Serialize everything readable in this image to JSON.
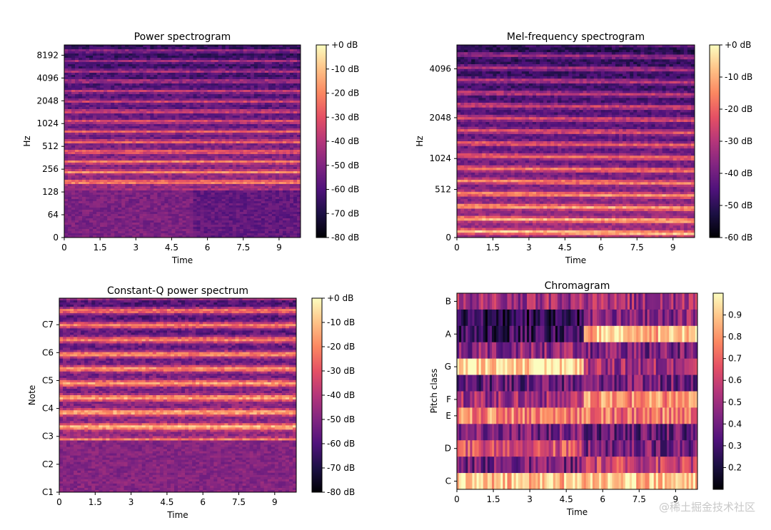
{
  "colors": {
    "magma_stops": [
      "#000004",
      "#1c1044",
      "#4f127b",
      "#812581",
      "#b5367a",
      "#e55064",
      "#fb8761",
      "#fec287",
      "#fcfdbf"
    ]
  },
  "watermark": "@稀土掘金技术社区",
  "chart_data": [
    {
      "id": "power",
      "type": "heatmap",
      "title": "Power spectrogram",
      "xlabel": "Time",
      "ylabel": "Hz",
      "xlim": [
        0,
        9.9
      ],
      "xticks": [
        0,
        1.5,
        3,
        4.5,
        6,
        7.5,
        9
      ],
      "xtick_labels": [
        "0",
        "1.5",
        "3",
        "4.5",
        "6",
        "7.5",
        "9"
      ],
      "yscale": "log",
      "yticks": [
        0,
        64,
        128,
        256,
        512,
        1024,
        2048,
        4096,
        8192
      ],
      "ytick_labels": [
        "0",
        "64",
        "128",
        "256",
        "512",
        "1024",
        "2048",
        "4096",
        "8192"
      ],
      "colorbar": {
        "range": [
          -80,
          0
        ],
        "ticks": [
          0,
          -10,
          -20,
          -30,
          -40,
          -50,
          -60,
          -70,
          -80
        ],
        "labels": [
          "+0 dB",
          "-10 dB",
          "-20 dB",
          "-30 dB",
          "-40 dB",
          "-50 dB",
          "-60 dB",
          "-70 dB",
          "-80 dB"
        ]
      }
    },
    {
      "id": "mel",
      "type": "heatmap",
      "title": "Mel-frequency spectrogram",
      "xlabel": "Time",
      "ylabel": "Hz",
      "xlim": [
        0,
        9.9
      ],
      "xticks": [
        0,
        1.5,
        3,
        4.5,
        6,
        7.5,
        9
      ],
      "xtick_labels": [
        "0",
        "1.5",
        "3",
        "4.5",
        "6",
        "7.5",
        "9"
      ],
      "yscale": "mel",
      "yticks": [
        0,
        512,
        1024,
        2048,
        4096
      ],
      "ytick_labels": [
        "0",
        "512",
        "1024",
        "2048",
        "4096"
      ],
      "colorbar": {
        "range": [
          -60,
          0
        ],
        "ticks": [
          0,
          -10,
          -20,
          -30,
          -40,
          -50,
          -60
        ],
        "labels": [
          "+0 dB",
          "-10 dB",
          "-20 dB",
          "-30 dB",
          "-40 dB",
          "-50 dB",
          "-60 dB"
        ]
      }
    },
    {
      "id": "cqt",
      "type": "heatmap",
      "title": "Constant-Q power spectrum",
      "xlabel": "Time",
      "ylabel": "Note",
      "xlim": [
        0,
        9.9
      ],
      "xticks": [
        0,
        1.5,
        3,
        4.5,
        6,
        7.5,
        9
      ],
      "xtick_labels": [
        "0",
        "1.5",
        "3",
        "4.5",
        "6",
        "7.5",
        "9"
      ],
      "yscale": "note",
      "yticks": [
        1,
        2,
        3,
        4,
        5,
        6,
        7
      ],
      "ytick_labels": [
        "C1",
        "C2",
        "C3",
        "C4",
        "C5",
        "C6",
        "C7"
      ],
      "ylim": [
        1,
        7.95
      ],
      "colorbar": {
        "range": [
          -80,
          0
        ],
        "ticks": [
          0,
          -10,
          -20,
          -30,
          -40,
          -50,
          -60,
          -70,
          -80
        ],
        "labels": [
          "+0 dB",
          "-10 dB",
          "-20 dB",
          "-30 dB",
          "-40 dB",
          "-50 dB",
          "-60 dB",
          "-70 dB",
          "-80 dB"
        ]
      }
    },
    {
      "id": "chroma",
      "type": "heatmap",
      "title": "Chromagram",
      "xlabel": "Time",
      "ylabel": "Pitch class",
      "xlim": [
        0,
        9.9
      ],
      "xticks": [
        0,
        1.5,
        3,
        4.5,
        6,
        7.5,
        9
      ],
      "xtick_labels": [
        "0",
        "1.5",
        "3",
        "4.5",
        "6",
        "7.5",
        "9"
      ],
      "yscale": "chroma",
      "yticks": [
        0,
        2,
        4,
        5,
        7,
        9,
        11
      ],
      "ytick_labels": [
        "C",
        "D",
        "E",
        "F",
        "G",
        "A",
        "B"
      ],
      "ylim": [
        -0.5,
        11.5
      ],
      "colorbar": {
        "range": [
          0.1,
          1.0
        ],
        "ticks": [
          0.9,
          0.8,
          0.7,
          0.6,
          0.5,
          0.4,
          0.3,
          0.2
        ],
        "labels": [
          "0.9",
          "0.8",
          "0.7",
          "0.6",
          "0.5",
          "0.4",
          "0.3",
          "0.2"
        ]
      }
    }
  ]
}
